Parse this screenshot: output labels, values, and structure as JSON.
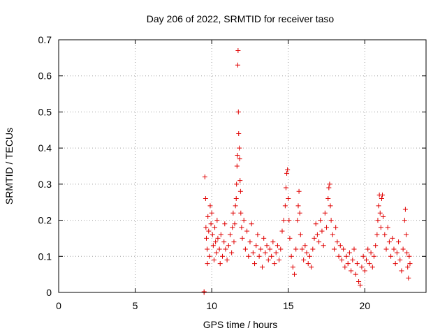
{
  "chart_data": {
    "type": "scatter",
    "title": "Day 206 of 2022, SRMTID for receiver taso",
    "xlabel": "GPS time / hours",
    "ylabel": "SRMTID / TECUs",
    "xlim": [
      0,
      24
    ],
    "ylim": [
      0,
      0.7
    ],
    "xticks": [
      0,
      5,
      10,
      15,
      20
    ],
    "yticks": [
      0,
      0.1,
      0.2,
      0.3,
      0.4,
      0.5,
      0.6,
      0.7
    ],
    "xtick_labels": [
      "0",
      "5",
      "10",
      "15",
      "20"
    ],
    "ytick_labels": [
      "0",
      "0.1",
      "0.2",
      "0.3",
      "0.4",
      "0.5",
      "0.6",
      "0.7"
    ],
    "grid": true,
    "marker": "plus",
    "color": "#e00000",
    "legend": "none",
    "series": [
      {
        "name": "SRMTID",
        "points": [
          [
            9.5,
            0.0
          ],
          [
            9.5,
            0.002
          ],
          [
            9.55,
            0.32
          ],
          [
            9.6,
            0.26
          ],
          [
            9.62,
            0.18
          ],
          [
            9.65,
            0.15
          ],
          [
            9.7,
            0.12
          ],
          [
            9.72,
            0.08
          ],
          [
            9.75,
            0.21
          ],
          [
            9.8,
            0.17
          ],
          [
            9.85,
            0.1
          ],
          [
            9.9,
            0.24
          ],
          [
            9.95,
            0.19
          ],
          [
            10.0,
            0.22
          ],
          [
            10.05,
            0.16
          ],
          [
            10.1,
            0.13
          ],
          [
            10.15,
            0.09
          ],
          [
            10.2,
            0.18
          ],
          [
            10.25,
            0.14
          ],
          [
            10.3,
            0.11
          ],
          [
            10.35,
            0.2
          ],
          [
            10.4,
            0.15
          ],
          [
            10.5,
            0.12
          ],
          [
            10.55,
            0.08
          ],
          [
            10.6,
            0.16
          ],
          [
            10.7,
            0.1
          ],
          [
            10.8,
            0.14
          ],
          [
            10.85,
            0.19
          ],
          [
            10.9,
            0.12
          ],
          [
            11.0,
            0.09
          ],
          [
            11.1,
            0.13
          ],
          [
            11.2,
            0.16
          ],
          [
            11.3,
            0.11
          ],
          [
            11.35,
            0.18
          ],
          [
            11.4,
            0.22
          ],
          [
            11.45,
            0.14
          ],
          [
            11.5,
            0.19
          ],
          [
            11.55,
            0.24
          ],
          [
            11.6,
            0.26
          ],
          [
            11.62,
            0.3
          ],
          [
            11.65,
            0.35
          ],
          [
            11.68,
            0.38
          ],
          [
            11.7,
            0.63
          ],
          [
            11.72,
            0.67
          ],
          [
            11.74,
            0.5
          ],
          [
            11.76,
            0.44
          ],
          [
            11.8,
            0.4
          ],
          [
            11.82,
            0.37
          ],
          [
            11.85,
            0.31
          ],
          [
            11.88,
            0.28
          ],
          [
            11.9,
            0.22
          ],
          [
            11.95,
            0.18
          ],
          [
            12.0,
            0.15
          ],
          [
            12.1,
            0.2
          ],
          [
            12.2,
            0.12
          ],
          [
            12.3,
            0.17
          ],
          [
            12.4,
            0.1
          ],
          [
            12.5,
            0.14
          ],
          [
            12.6,
            0.19
          ],
          [
            12.7,
            0.11
          ],
          [
            12.8,
            0.08
          ],
          [
            12.9,
            0.13
          ],
          [
            13.0,
            0.16
          ],
          [
            13.1,
            0.1
          ],
          [
            13.2,
            0.12
          ],
          [
            13.3,
            0.07
          ],
          [
            13.4,
            0.15
          ],
          [
            13.5,
            0.11
          ],
          [
            13.6,
            0.13
          ],
          [
            13.7,
            0.09
          ],
          [
            13.8,
            0.12
          ],
          [
            13.9,
            0.1
          ],
          [
            14.0,
            0.14
          ],
          [
            14.1,
            0.08
          ],
          [
            14.2,
            0.11
          ],
          [
            14.3,
            0.13
          ],
          [
            14.4,
            0.09
          ],
          [
            14.5,
            0.12
          ],
          [
            14.6,
            0.17
          ],
          [
            14.7,
            0.2
          ],
          [
            14.8,
            0.24
          ],
          [
            14.85,
            0.29
          ],
          [
            14.9,
            0.33
          ],
          [
            14.95,
            0.34
          ],
          [
            15.0,
            0.26
          ],
          [
            15.05,
            0.2
          ],
          [
            15.1,
            0.15
          ],
          [
            15.2,
            0.1
          ],
          [
            15.3,
            0.07
          ],
          [
            15.4,
            0.05
          ],
          [
            15.5,
            0.12
          ],
          [
            15.6,
            0.2
          ],
          [
            15.65,
            0.24
          ],
          [
            15.7,
            0.28
          ],
          [
            15.75,
            0.22
          ],
          [
            15.8,
            0.16
          ],
          [
            15.9,
            0.12
          ],
          [
            16.0,
            0.09
          ],
          [
            16.1,
            0.13
          ],
          [
            16.2,
            0.11
          ],
          [
            16.3,
            0.08
          ],
          [
            16.4,
            0.1
          ],
          [
            16.5,
            0.07
          ],
          [
            16.6,
            0.12
          ],
          [
            16.7,
            0.15
          ],
          [
            16.8,
            0.19
          ],
          [
            16.9,
            0.16
          ],
          [
            17.0,
            0.14
          ],
          [
            17.1,
            0.2
          ],
          [
            17.2,
            0.17
          ],
          [
            17.3,
            0.13
          ],
          [
            17.4,
            0.22
          ],
          [
            17.5,
            0.18
          ],
          [
            17.6,
            0.26
          ],
          [
            17.65,
            0.29
          ],
          [
            17.7,
            0.3
          ],
          [
            17.75,
            0.24
          ],
          [
            17.8,
            0.2
          ],
          [
            17.9,
            0.16
          ],
          [
            18.0,
            0.12
          ],
          [
            18.1,
            0.18
          ],
          [
            18.2,
            0.14
          ],
          [
            18.3,
            0.1
          ],
          [
            18.4,
            0.13
          ],
          [
            18.5,
            0.09
          ],
          [
            18.6,
            0.12
          ],
          [
            18.7,
            0.07
          ],
          [
            18.8,
            0.1
          ],
          [
            18.9,
            0.08
          ],
          [
            19.0,
            0.11
          ],
          [
            19.1,
            0.06
          ],
          [
            19.2,
            0.09
          ],
          [
            19.3,
            0.12
          ],
          [
            19.4,
            0.05
          ],
          [
            19.5,
            0.08
          ],
          [
            19.6,
            0.03
          ],
          [
            19.7,
            0.02
          ],
          [
            19.8,
            0.07
          ],
          [
            19.9,
            0.1
          ],
          [
            20.0,
            0.06
          ],
          [
            20.1,
            0.09
          ],
          [
            20.2,
            0.12
          ],
          [
            20.3,
            0.08
          ],
          [
            20.4,
            0.11
          ],
          [
            20.5,
            0.07
          ],
          [
            20.6,
            0.1
          ],
          [
            20.7,
            0.13
          ],
          [
            20.8,
            0.16
          ],
          [
            20.85,
            0.2
          ],
          [
            20.9,
            0.24
          ],
          [
            20.95,
            0.27
          ],
          [
            21.0,
            0.22
          ],
          [
            21.05,
            0.18
          ],
          [
            21.1,
            0.26
          ],
          [
            21.15,
            0.27
          ],
          [
            21.2,
            0.21
          ],
          [
            21.3,
            0.16
          ],
          [
            21.4,
            0.12
          ],
          [
            21.5,
            0.18
          ],
          [
            21.6,
            0.14
          ],
          [
            21.7,
            0.1
          ],
          [
            21.8,
            0.15
          ],
          [
            21.9,
            0.12
          ],
          [
            22.0,
            0.08
          ],
          [
            22.1,
            0.11
          ],
          [
            22.2,
            0.14
          ],
          [
            22.3,
            0.09
          ],
          [
            22.4,
            0.06
          ],
          [
            22.5,
            0.12
          ],
          [
            22.6,
            0.2
          ],
          [
            22.65,
            0.23
          ],
          [
            22.7,
            0.16
          ],
          [
            22.75,
            0.11
          ],
          [
            22.8,
            0.07
          ],
          [
            22.85,
            0.04
          ],
          [
            22.9,
            0.1
          ],
          [
            22.95,
            0.08
          ]
        ]
      }
    ]
  }
}
